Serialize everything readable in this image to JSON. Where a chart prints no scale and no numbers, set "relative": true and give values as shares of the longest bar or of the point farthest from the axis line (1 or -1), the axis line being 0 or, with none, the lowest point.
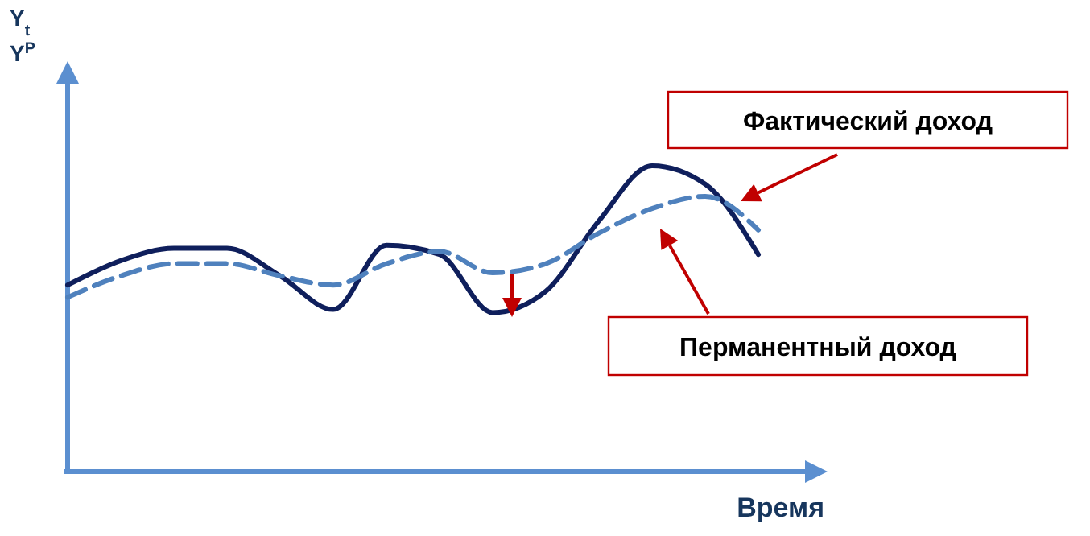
{
  "chart_data": {
    "type": "line",
    "relative": true,
    "xlabel": "Время",
    "ylabel": "Y$_{t}$ Y$^{P}$",
    "categories": [
      null,
      null,
      null,
      null,
      null,
      null,
      null,
      null,
      null,
      null,
      null,
      null,
      null,
      null
    ],
    "series": [
      {
        "name": "Фактический доход",
        "color": "#0f1f5c",
        "line_style": "solid",
        "values": [
          0.61,
          0.69,
          0.73,
          0.73,
          0.64,
          0.53,
          0.74,
          0.71,
          0.52,
          0.59,
          0.82,
          1,
          0.94,
          0.71
        ]
      },
      {
        "name": "Перманентный доход",
        "color": "#4f81bd",
        "line_style": "dashed",
        "values": [
          0.57,
          0.64,
          0.68,
          0.68,
          0.64,
          0.61,
          0.68,
          0.72,
          0.65,
          0.68,
          0.78,
          0.86,
          0.9,
          0.79
        ]
      }
    ]
  }
}
